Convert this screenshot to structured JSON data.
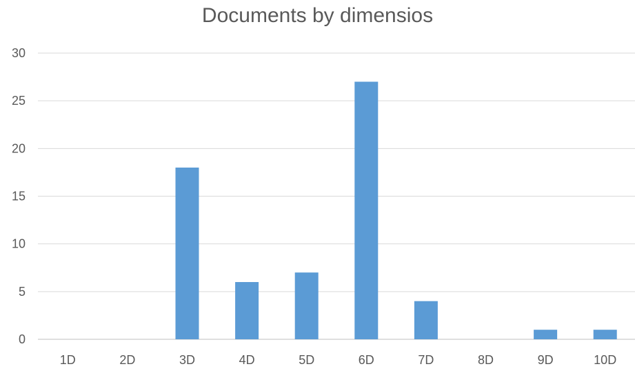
{
  "chart_data": {
    "type": "bar",
    "title": "Documents by dimensios",
    "categories": [
      "1D",
      "2D",
      "3D",
      "4D",
      "5D",
      "6D",
      "7D",
      "8D",
      "9D",
      "10D"
    ],
    "series": [
      {
        "values": [
          0,
          0,
          18,
          6,
          7,
          27,
          4,
          0,
          1,
          1
        ]
      }
    ],
    "ylim": [
      0,
      30
    ],
    "yticks": [
      0,
      5,
      10,
      15,
      20,
      25,
      30
    ],
    "xlabel": "",
    "ylabel": "",
    "grid": true,
    "legend": "none",
    "colors": {
      "bar": "#5b9bd5",
      "grid": "#d9d9d9",
      "axis": "#bfbfbf",
      "text": "#595959"
    }
  }
}
